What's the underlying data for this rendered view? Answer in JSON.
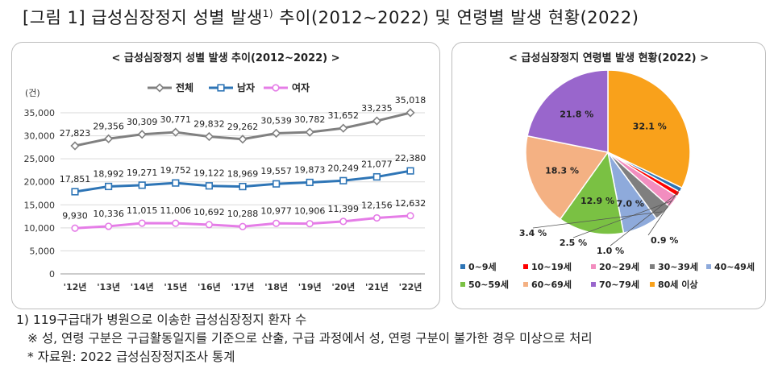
{
  "figure_title": "[그림 1] 급성심장정지 성별 발생",
  "figure_title_sup": "1)",
  "figure_title_rest": " 추이(2012~2022) 및 연령별 발생 현황(2022)",
  "chart_data": [
    {
      "type": "line",
      "title": "< 급성심장정지 성별 발생 추이(2012~2022) >",
      "ylabel": "(건)",
      "categories": [
        "'12년",
        "'13년",
        "'14년",
        "'15년",
        "'16년",
        "'17년",
        "'18년",
        "'19년",
        "'20년",
        "'21년",
        "'22년"
      ],
      "ylim": [
        0,
        35000
      ],
      "yticks": [
        "0",
        "5,000",
        "10,000",
        "15,000",
        "20,000",
        "25,000",
        "30,000",
        "35,000"
      ],
      "legend_position": "top",
      "series": [
        {
          "name": "전체",
          "color": "#808080",
          "marker": "diamond",
          "values": [
            27823,
            29356,
            30309,
            30771,
            29832,
            29262,
            30539,
            30782,
            31652,
            33235,
            35018
          ],
          "labels": [
            "27,823",
            "29,356",
            "30,309",
            "30,771",
            "29,832",
            "29,262",
            "30,539",
            "30,782",
            "31,652",
            "33,235",
            "35,018"
          ]
        },
        {
          "name": "남자",
          "color": "#2e75b6",
          "marker": "square",
          "values": [
            17851,
            18992,
            19271,
            19752,
            19122,
            18969,
            19557,
            19873,
            20249,
            21077,
            22380
          ],
          "labels": [
            "17,851",
            "18,992",
            "19,271",
            "19,752",
            "19,122",
            "18,969",
            "19,557",
            "19,873",
            "20,249",
            "21,077",
            "22,380"
          ]
        },
        {
          "name": "여자",
          "color": "#e57de7",
          "marker": "circle",
          "values": [
            9930,
            10336,
            11015,
            11006,
            10692,
            10288,
            10977,
            10906,
            11399,
            12156,
            12632
          ],
          "labels": [
            "9,930",
            "10,336",
            "11,015",
            "11,006",
            "10,692",
            "10,288",
            "10,977",
            "10,906",
            "11,399",
            "12,156",
            "12,632"
          ]
        }
      ]
    },
    {
      "type": "pie",
      "title": "< 급성심장정지 연령별 발생 현황(2022) >",
      "unit": "%",
      "slices": [
        {
          "name": "0~9세",
          "value": 0.9,
          "label": "0.9 %",
          "color": "#2e75b6"
        },
        {
          "name": "10~19세",
          "value": 1.0,
          "label": "1.0 %",
          "color": "#ff0000"
        },
        {
          "name": "20~29세",
          "value": 2.5,
          "label": "2.5 %",
          "color": "#f28dbf"
        },
        {
          "name": "30~39세",
          "value": 3.4,
          "label": "3.4 %",
          "color": "#7f7f7f"
        },
        {
          "name": "40~49세",
          "value": 7.0,
          "label": "7.0 %",
          "color": "#8eaadb"
        },
        {
          "name": "50~59세",
          "value": 12.9,
          "label": "12.9 %",
          "color": "#7ac143"
        },
        {
          "name": "60~69세",
          "value": 18.3,
          "label": "18.3 %",
          "color": "#f4b183"
        },
        {
          "name": "70~79세",
          "value": 21.8,
          "label": "21.8 %",
          "color": "#9966cc"
        },
        {
          "name": "80세 이상",
          "value": 32.1,
          "label": "32.1 %",
          "color": "#f9a11b"
        }
      ],
      "legend_position": "bottom"
    }
  ],
  "footnotes": [
    "1) 119구급대가 병원으로 이송한 급성심장정지 환자 수",
    "※ 성, 연령 구분은 구급활동일지를 기준으로 산출, 구급 과정에서 성, 연령 구분이 불가한 경우 미상으로 처리",
    "* 자료원: 2022 급성심장정지조사 통계"
  ]
}
